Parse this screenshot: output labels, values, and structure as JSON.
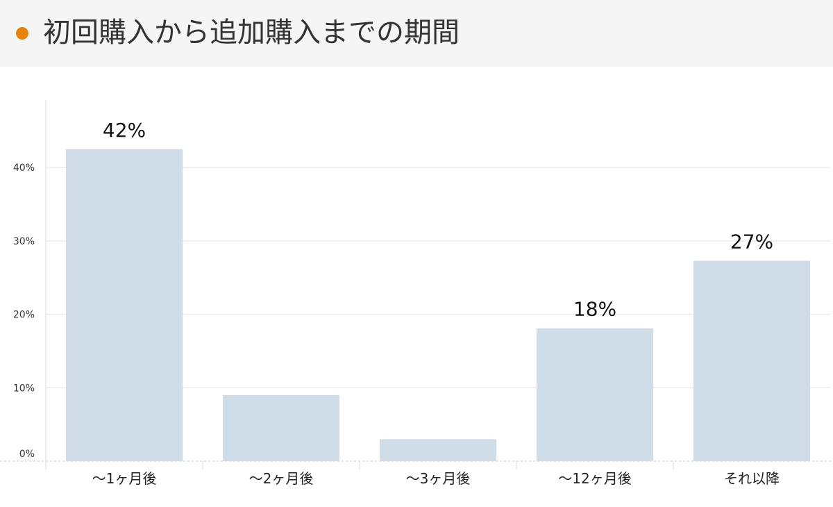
{
  "header": {
    "title": "初回購入から追加購入までの期間",
    "accent_color": "#e8820c"
  },
  "chart_data": {
    "type": "bar",
    "title": "初回購入から追加購入までの期間",
    "categories": [
      "〜1ヶ月後",
      "〜2ヶ月後",
      "〜3ヶ月後",
      "〜12ヶ月後",
      "それ以降"
    ],
    "values": [
      42.5,
      9.0,
      3.0,
      18.1,
      27.3
    ],
    "data_labels": [
      "42%",
      "",
      "",
      "18%",
      "27%"
    ],
    "y_ticks": [
      0,
      10,
      20,
      30,
      40
    ],
    "y_tick_labels": [
      "0%",
      "10%",
      "20%",
      "30%",
      "40%"
    ],
    "ylim": [
      0,
      49.2
    ],
    "xlabel": "",
    "ylabel": "",
    "grid": true,
    "bar_color": "#cfdde8"
  }
}
